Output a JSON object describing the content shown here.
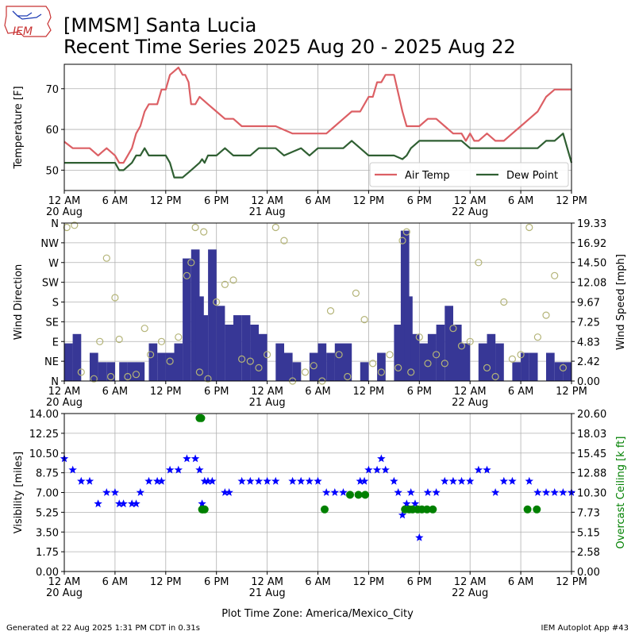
{
  "header": {
    "logo_text": "IEM",
    "title_line1": "[MMSM] Santa Lucia",
    "title_line2": "Recent Time Series 2025 Aug 20 - 2025 Aug 22"
  },
  "footer": {
    "generated": "Generated at 22 Aug 2025 1:31 PM CDT in 0.31s",
    "app": "IEM Autoplot App #43",
    "xlabel": "Plot Time Zone: America/Mexico_City"
  },
  "colors": {
    "air_temp": "#dc5f64",
    "dew_point": "#2f5f32",
    "wind_speed": "#373796",
    "wind_dir_marker": "#b4b478",
    "visibility": "#0000ff",
    "ceiling": "#008000",
    "grid": "#b0b0b0"
  },
  "x_axis": {
    "tick_labels": [
      "12 AM",
      "6 AM",
      "12 PM",
      "6 PM",
      "12 AM",
      "6 AM",
      "12 PM",
      "6 PM",
      "12 AM",
      "6 AM",
      "12 PM"
    ],
    "tick_hours": [
      0,
      6,
      12,
      18,
      24,
      30,
      36,
      42,
      48,
      54,
      60
    ],
    "date_labels": [
      {
        "hour": 0,
        "label": "20 Aug"
      },
      {
        "hour": 24,
        "label": "21 Aug"
      },
      {
        "hour": 48,
        "label": "22 Aug"
      }
    ],
    "range_hours": [
      0,
      60
    ],
    "panel1_2_range_hours": [
      0,
      60
    ]
  },
  "chart_data": [
    {
      "type": "line",
      "panel": "temperature",
      "ylabel": "Temperature [F]",
      "ylim": [
        45,
        76
      ],
      "yticks": [
        50,
        60,
        70
      ],
      "xlim_hours": [
        0,
        60
      ],
      "grid": true,
      "legend_position": "bottom-right",
      "series": [
        {
          "name": "Air Temp",
          "x_hours": [
            0,
            1,
            2,
            3,
            3.5,
            4,
            5,
            5.5,
            6,
            6.5,
            7,
            7.5,
            8,
            8.5,
            9,
            9.5,
            10,
            10.5,
            11,
            11.5,
            12,
            12.5,
            13,
            13.5,
            14,
            14.3,
            14.7,
            15,
            15.5,
            16,
            17,
            18,
            19,
            20,
            21,
            22,
            23,
            24,
            25,
            26,
            27,
            28,
            29,
            30,
            31,
            32,
            33,
            34,
            35,
            36,
            36.5,
            37,
            37.5,
            38,
            38.5,
            39,
            40,
            40.5,
            41,
            42,
            43,
            44,
            45,
            46,
            47,
            47.5,
            48,
            48.5,
            49,
            50,
            51,
            52,
            53,
            54,
            55,
            56,
            57,
            58,
            59,
            60
          ],
          "values": [
            57,
            55.4,
            55.4,
            55.4,
            54.5,
            53.6,
            55.4,
            54.5,
            53.6,
            51.8,
            51.8,
            53.6,
            55.4,
            59,
            60.8,
            64.4,
            66.2,
            66.2,
            66.2,
            69.8,
            69.8,
            73.4,
            74.3,
            75.2,
            73.4,
            73.4,
            71.6,
            66.2,
            66.2,
            68,
            66.2,
            64.4,
            62.6,
            62.6,
            60.8,
            60.8,
            60.8,
            60.8,
            60.8,
            59.9,
            59,
            59,
            59,
            59,
            59,
            60.8,
            62.6,
            64.4,
            64.4,
            68,
            68,
            71.6,
            71.6,
            73.4,
            73.4,
            73.4,
            64.4,
            60.8,
            60.8,
            60.8,
            62.6,
            62.6,
            60.8,
            59,
            59,
            57.2,
            59,
            57.2,
            57.2,
            59,
            57.2,
            57.2,
            59,
            60.8,
            62.6,
            64.4,
            68,
            69.8,
            69.8,
            69.8
          ]
        },
        {
          "name": "Dew Point",
          "x_hours": [
            0,
            1,
            2,
            3,
            4,
            5,
            6,
            6.5,
            7,
            7.5,
            8,
            8.5,
            9,
            9.5,
            10,
            11,
            12,
            12.5,
            13,
            14,
            15,
            16,
            16.3,
            16.6,
            17,
            18,
            19,
            20,
            21,
            22,
            23,
            24,
            25,
            26,
            27,
            28,
            29,
            30,
            31,
            32,
            33,
            34,
            35,
            36,
            37,
            38,
            39,
            40,
            40.5,
            41,
            42,
            43,
            44,
            45,
            46,
            47,
            48,
            49,
            50,
            51,
            52,
            53,
            54,
            55,
            56,
            57,
            58,
            59,
            59.5,
            60
          ],
          "values": [
            51.8,
            51.8,
            51.8,
            51.8,
            51.8,
            51.8,
            51.8,
            50,
            50,
            50.9,
            51.8,
            53.6,
            53.6,
            55.4,
            53.6,
            53.6,
            53.6,
            51.8,
            48.2,
            48.2,
            50,
            51.8,
            52.7,
            51.8,
            53.6,
            53.6,
            55.4,
            53.6,
            53.6,
            53.6,
            55.4,
            55.4,
            55.4,
            53.6,
            54.5,
            55.4,
            53.6,
            55.4,
            55.4,
            55.4,
            55.4,
            57.2,
            55.4,
            53.6,
            53.6,
            53.6,
            53.6,
            52.7,
            53.6,
            55.4,
            57.2,
            57.2,
            57.2,
            57.2,
            57.2,
            57.2,
            55.4,
            55.4,
            55.4,
            55.4,
            55.4,
            55.4,
            55.4,
            55.4,
            55.4,
            57.2,
            57.2,
            59,
            55.4,
            51.8
          ]
        }
      ]
    },
    {
      "type": "bar",
      "panel": "wind",
      "ylabel_left": "Wind Direction",
      "ylabel_right": "Wind Speed [mph]",
      "y_left_ticks": [
        "N",
        "NE",
        "E",
        "SE",
        "S",
        "SW",
        "W",
        "NW",
        "N"
      ],
      "y_left_range": [
        0,
        360
      ],
      "y_right_ticks": [
        "0.00",
        "2.42",
        "4.83",
        "7.25",
        "9.67",
        "12.08",
        "14.50",
        "16.92",
        "19.33"
      ],
      "y_right_range": [
        0,
        19.33
      ],
      "xlim_hours": [
        0,
        60
      ],
      "grid": true,
      "wind_speed_x_hours": [
        0.5,
        1.5,
        3.5,
        4.5,
        5.5,
        7.0,
        8.0,
        9.0,
        10.5,
        11.5,
        12.5,
        13.5,
        14.5,
        15.5,
        16.0,
        16.5,
        17.5,
        18.5,
        19.5,
        20.5,
        21.5,
        22.5,
        23.5,
        25.5,
        26.5,
        27.5,
        29.5,
        30.5,
        31.5,
        32.5,
        33.5,
        35.5,
        37.5,
        39.5,
        40.3,
        40.7,
        41.5,
        42.5,
        43.5,
        44.5,
        45.5,
        46.5,
        47.5,
        49.5,
        50.5,
        51.5,
        53.5,
        54.5,
        55.5,
        57.5,
        58.5,
        59.5
      ],
      "wind_speed": [
        4.6,
        5.75,
        3.45,
        2.3,
        2.3,
        2.3,
        2.3,
        2.3,
        4.6,
        3.45,
        3.45,
        4.6,
        15.0,
        16.1,
        10.35,
        8.05,
        16.1,
        9.2,
        6.9,
        8.05,
        8.05,
        6.9,
        5.75,
        4.6,
        3.45,
        2.3,
        3.45,
        4.6,
        3.45,
        4.6,
        4.6,
        2.3,
        3.45,
        6.9,
        18.4,
        10.35,
        5.75,
        4.6,
        5.75,
        6.9,
        9.2,
        6.9,
        4.6,
        4.6,
        5.75,
        4.6,
        2.3,
        3.45,
        3.45,
        3.45,
        2.3,
        2.3
      ],
      "wind_dir_x_hours": [
        0.3,
        1.2,
        2.0,
        3.5,
        4.2,
        5.0,
        5.5,
        6.0,
        6.5,
        7.5,
        8.5,
        9.5,
        10.2,
        11.5,
        12.5,
        13.5,
        14.5,
        15.0,
        15.5,
        16.0,
        16.5,
        17.0,
        18.0,
        19.0,
        20.0,
        21.0,
        22.0,
        23.0,
        24.0,
        25.0,
        26.0,
        27.0,
        28.5,
        29.5,
        30.5,
        31.5,
        32.5,
        33.5,
        34.5,
        35.5,
        36.5,
        37.5,
        38.5,
        39.5,
        40.0,
        40.5,
        41.0,
        42.0,
        43.0,
        44.0,
        45.0,
        46.0,
        47.0,
        48.0,
        49.0,
        50.0,
        51.0,
        52.0,
        53.0,
        54.0,
        55.0,
        56.0,
        57.0,
        58.0,
        59.0
      ],
      "wind_dir": [
        350,
        355,
        20,
        5,
        90,
        280,
        10,
        190,
        95,
        10,
        15,
        120,
        60,
        90,
        45,
        100,
        240,
        270,
        350,
        20,
        340,
        5,
        180,
        220,
        230,
        50,
        45,
        30,
        60,
        350,
        320,
        0,
        20,
        35,
        0,
        160,
        60,
        10,
        200,
        140,
        40,
        20,
        60,
        30,
        320,
        340,
        20,
        100,
        40,
        60,
        40,
        120,
        80,
        90,
        270,
        30,
        10,
        180,
        50,
        60,
        350,
        100,
        150,
        240,
        30
      ]
    },
    {
      "type": "scatter",
      "panel": "visibility",
      "ylabel_left": "Visibility [miles]",
      "ylabel_right": "Overcast Ceiling [k ft]",
      "y_left_ticks": [
        "0.00",
        "1.75",
        "3.50",
        "5.25",
        "7.00",
        "8.75",
        "10.50",
        "12.25",
        "14.00"
      ],
      "y_left_range": [
        0,
        14
      ],
      "y_right_ticks": [
        "0.00",
        "2.58",
        "5.15",
        "7.73",
        "10.30",
        "12.88",
        "15.45",
        "18.03",
        "20.60"
      ],
      "y_right_range": [
        0,
        20.6
      ],
      "xlim_hours": [
        0,
        60
      ],
      "grid": true,
      "visibility_x_hours": [
        0,
        1,
        2,
        3,
        4,
        5,
        6,
        6.5,
        7,
        8,
        8.5,
        9,
        10,
        11,
        11.5,
        12.5,
        13.5,
        14.5,
        15.5,
        16,
        16.3,
        16.6,
        17,
        17.5,
        19,
        19.5,
        21,
        22,
        23,
        24,
        25,
        27,
        28,
        29,
        30,
        31,
        32,
        33,
        35,
        35.5,
        36,
        37,
        37.5,
        38,
        39,
        39.5,
        40,
        40.5,
        41,
        41.5,
        42,
        43,
        44,
        45,
        46,
        47,
        48,
        49,
        50,
        51,
        52,
        53,
        55,
        56,
        57,
        58,
        59,
        60
      ],
      "visibility": [
        10.0,
        9.0,
        8.0,
        8.0,
        6.0,
        7.0,
        7.0,
        6.0,
        6.0,
        6.0,
        6.0,
        7.0,
        8.0,
        8.0,
        8.0,
        9.0,
        9.0,
        10.0,
        10.0,
        9.0,
        6.0,
        8.0,
        8.0,
        8.0,
        7.0,
        7.0,
        8.0,
        8.0,
        8.0,
        8.0,
        8.0,
        8.0,
        8.0,
        8.0,
        8.0,
        7.0,
        7.0,
        7.0,
        8.0,
        8.0,
        9.0,
        9.0,
        10.0,
        9.0,
        8.0,
        7.0,
        5.0,
        6.0,
        7.0,
        6.0,
        3.0,
        7.0,
        7.0,
        8.0,
        8.0,
        8.0,
        8.0,
        9.0,
        9.0,
        7.0,
        8.0,
        8.0,
        8.0,
        7.0,
        7.0,
        7.0,
        7.0,
        7.0
      ],
      "ceiling_x_hours": [
        16.0,
        16.3,
        16.2,
        16.4,
        16.6,
        30.8,
        33.8,
        34.8,
        35.6,
        40.3,
        40.8,
        41.2,
        41.8,
        42.3,
        42.9,
        43.6,
        54.8,
        55.9
      ],
      "ceiling": [
        20.0,
        8.1,
        20.0,
        8.1,
        8.1,
        8.1,
        10.0,
        10.0,
        10.0,
        8.1,
        8.1,
        8.1,
        8.1,
        8.1,
        8.1,
        8.1,
        8.1,
        8.1
      ]
    }
  ]
}
